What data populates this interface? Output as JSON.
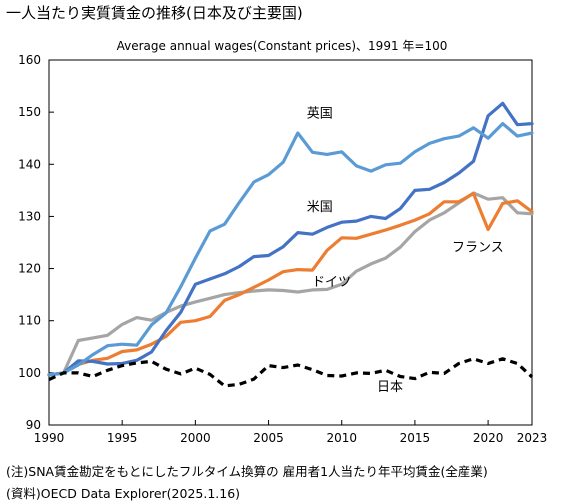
{
  "title": "一人当たり実質賃金の推移(日本及び主要国)",
  "notes": [
    "(注)SNA賃金勘定をもとにしたフルタイム換算の 雇用者1人当たり年平均賃金(全産業)",
    "(資料)OECD Data Explorer(2025.1.16)"
  ],
  "chart_data": {
    "type": "line",
    "subtitle": "Average annual wages(Constant prices)、1991 年=100",
    "xlabel": "",
    "ylabel": "",
    "xlim": [
      1990,
      2023
    ],
    "ylim": [
      90,
      160
    ],
    "x_ticks": [
      1990,
      1995,
      2000,
      2005,
      2010,
      2015,
      2020,
      2023
    ],
    "y_ticks": [
      90,
      100,
      110,
      120,
      130,
      140,
      150,
      160
    ],
    "grid": false,
    "legend": "inline-labels",
    "x": [
      1990,
      1991,
      1992,
      1993,
      1994,
      1995,
      1996,
      1997,
      1998,
      1999,
      2000,
      2001,
      2002,
      2003,
      2004,
      2005,
      2006,
      2007,
      2008,
      2009,
      2010,
      2011,
      2012,
      2013,
      2014,
      2015,
      2016,
      2017,
      2018,
      2019,
      2020,
      2021,
      2022,
      2023
    ],
    "series": [
      {
        "name": "英国",
        "color": "#5b9bd5",
        "dash": false,
        "label_pos": [
          2008.5,
          149
        ],
        "values": [
          99.6,
          100,
          101.5,
          103.5,
          105.2,
          105.5,
          105.3,
          109.2,
          111.5,
          116.5,
          122,
          127.2,
          128.5,
          132.7,
          136.6,
          138,
          140.4,
          146,
          142.3,
          141.9,
          142.4,
          139.7,
          138.7,
          139.9,
          140.2,
          142.4,
          144,
          144.9,
          145.4,
          147,
          145,
          147.8,
          145.4,
          146
        ]
      },
      {
        "name": "米国",
        "color": "#4472c4",
        "dash": false,
        "label_pos": [
          2008.5,
          131
        ],
        "values": [
          99.6,
          100,
          102.3,
          102.2,
          101.7,
          101.8,
          102.4,
          104,
          108.1,
          111.6,
          117,
          118,
          119,
          120.4,
          122.3,
          122.5,
          124.2,
          126.9,
          126.6,
          127.9,
          128.9,
          129.1,
          130,
          129.6,
          131.5,
          135,
          135.2,
          136.5,
          138.3,
          140.6,
          149.3,
          151.7,
          147.6,
          147.8
        ]
      },
      {
        "name": "フランス",
        "color": "#ed7d31",
        "dash": false,
        "label_pos": [
          2019.3,
          123.3
        ],
        "values": [
          99.6,
          100,
          101.6,
          102.4,
          102.8,
          104.1,
          104.4,
          105.5,
          107,
          109.7,
          110,
          110.8,
          113.9,
          115,
          116.4,
          117.8,
          119.4,
          119.8,
          119.7,
          123.5,
          125.9,
          125.8,
          126.6,
          127.4,
          128.3,
          129.3,
          130.5,
          132.8,
          132.8,
          134.4,
          127.5,
          132.5,
          133,
          130.9
        ]
      },
      {
        "name": "ドイツ",
        "color": "#a5a5a5",
        "dash": false,
        "label_pos": [
          2009.3,
          116.7
        ],
        "values": [
          99.6,
          100,
          106.2,
          106.7,
          107.2,
          109.3,
          110.6,
          110.1,
          111.6,
          112.8,
          113.6,
          114.3,
          115,
          115.4,
          115.7,
          115.9,
          115.8,
          115.5,
          115.9,
          116,
          117,
          119.5,
          120.9,
          122,
          124.1,
          127.1,
          129.3,
          130.7,
          132.6,
          134.5,
          133.3,
          133.6,
          130.7,
          130.5
        ]
      },
      {
        "name": "日本",
        "color": "#000000",
        "dash": true,
        "label_pos": [
          2013.3,
          96.5
        ],
        "values": [
          98.7,
          100,
          100,
          99.3,
          100.5,
          101.4,
          101.9,
          102.2,
          100.7,
          99.8,
          100.9,
          99.7,
          97.5,
          97.8,
          98.8,
          101.4,
          101,
          101.5,
          100.6,
          99.5,
          99.4,
          100,
          99.9,
          100.5,
          99.3,
          98.9,
          100.1,
          99.9,
          101.8,
          102.7,
          101.8,
          102.7,
          101.8,
          99.2
        ]
      }
    ]
  }
}
